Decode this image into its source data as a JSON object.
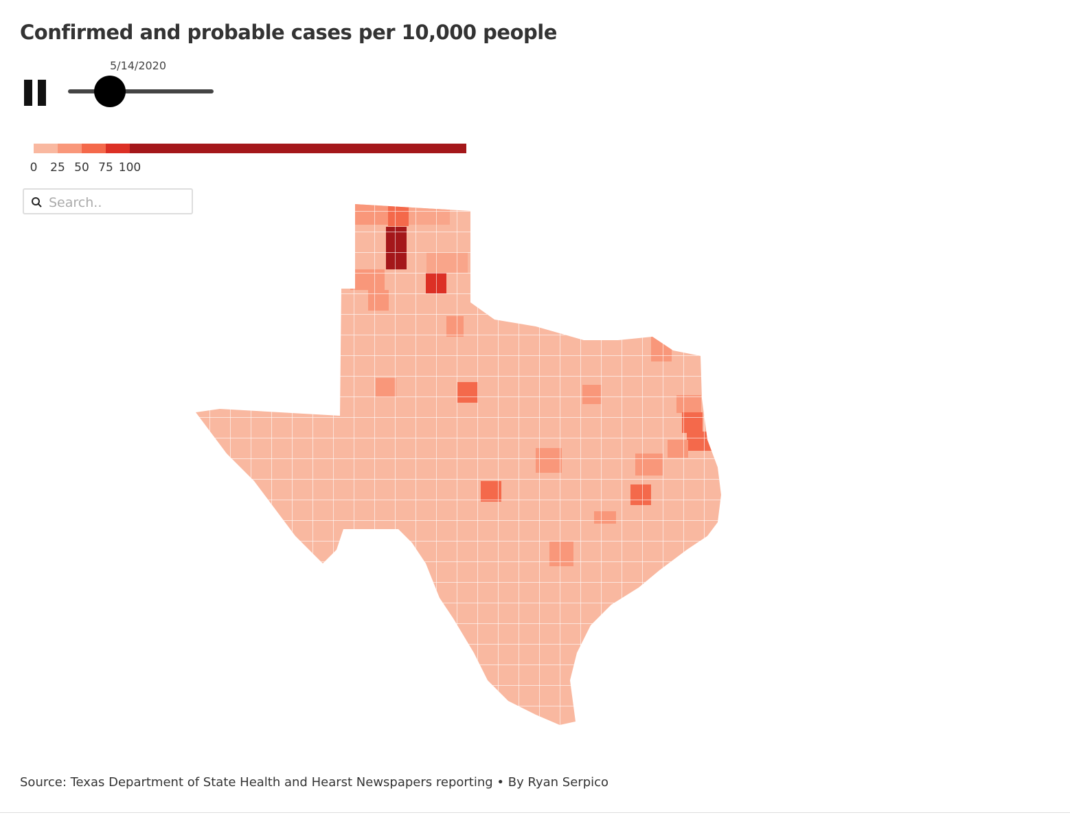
{
  "header": {
    "title": "Confirmed and probable cases per 10,000 people"
  },
  "slider": {
    "date": "5/14/2020"
  },
  "legend": {
    "ticks": [
      0,
      25,
      50,
      75,
      100
    ],
    "colors": [
      "#f9b8a0",
      "#f9977a",
      "#f4694b",
      "#dc3025",
      "#a4171a"
    ]
  },
  "search": {
    "placeholder": "Search.."
  },
  "footer": {
    "source": "Source: Texas Department of State Health and Hearst Newspapers reporting • By Ryan Serpico"
  }
}
